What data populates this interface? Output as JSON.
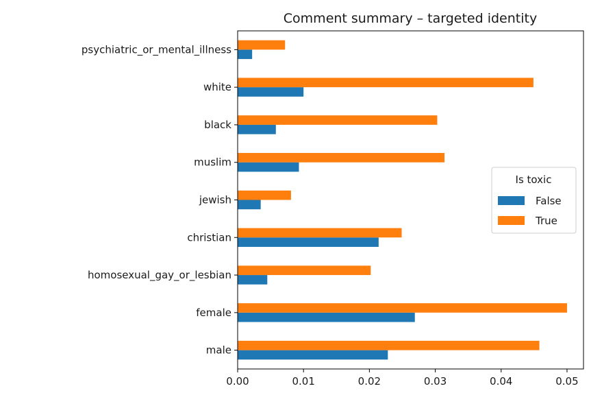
{
  "chart_data": {
    "type": "bar",
    "orientation": "horizontal",
    "title": "Comment summary – targeted identity",
    "xlabel": "",
    "ylabel": "",
    "categories": [
      "male",
      "female",
      "homosexual_gay_or_lesbian",
      "christian",
      "jewish",
      "muslim",
      "black",
      "white",
      "psychiatric_or_mental_illness"
    ],
    "series": [
      {
        "name": "False",
        "color": "#1f77b4",
        "values": [
          0.0228,
          0.0269,
          0.0045,
          0.0214,
          0.0035,
          0.0093,
          0.0058,
          0.01,
          0.0022
        ]
      },
      {
        "name": "True",
        "color": "#ff7f0e",
        "values": [
          0.0458,
          0.05,
          0.0202,
          0.0249,
          0.0081,
          0.0314,
          0.0303,
          0.0449,
          0.0072
        ]
      }
    ],
    "xlim": [
      0.0,
      0.0525
    ],
    "xticks": [
      0.0,
      0.01,
      0.02,
      0.03,
      0.04,
      0.05
    ],
    "xtick_labels": [
      "0.00",
      "0.01",
      "0.02",
      "0.03",
      "0.04",
      "0.05"
    ],
    "grid": false,
    "legend": {
      "title": "Is toxic",
      "position": "center-right",
      "entries": [
        "False",
        "True"
      ]
    }
  }
}
